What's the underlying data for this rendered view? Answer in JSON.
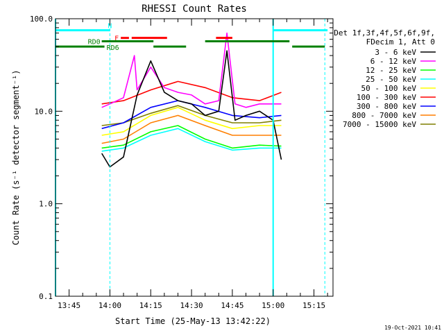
{
  "chart_data": {
    "type": "line",
    "title": "RHESSI Count Rates",
    "xlabel": "Start Time (25-May-13 13:42:22)",
    "ylabel": "Count Rate (s⁻¹ detector segment⁻¹)",
    "y_scale": "log",
    "ylim": [
      0.1,
      100
    ],
    "xlim": [
      "13:40",
      "15:22"
    ],
    "x_ticks": [
      "13:45",
      "14:00",
      "14:15",
      "14:30",
      "14:45",
      "15:00",
      "15:15"
    ],
    "y_ticks": [
      "0.1",
      "1.0",
      "10.0",
      "100.0"
    ],
    "legend_header": [
      "Det 1f,3f,4f,5f,6f,9f,",
      "FDecim 1, Att 0"
    ],
    "legend_position": "right",
    "series": [
      {
        "name": "3 - 6 keV",
        "color": "#000000",
        "x": [
          "13:57",
          "14:00",
          "14:05",
          "14:10",
          "14:15",
          "14:20",
          "14:25",
          "14:30",
          "14:35",
          "14:40",
          "14:43",
          "14:46",
          "14:50",
          "14:55",
          "15:00",
          "15:03"
        ],
        "y": [
          3.5,
          2.5,
          3.2,
          15,
          35,
          16,
          13,
          12,
          9,
          10,
          45,
          8,
          9,
          10,
          8,
          3
        ]
      },
      {
        "name": "6 - 12 keV",
        "color": "#ff00ff",
        "x": [
          "13:57",
          "14:00",
          "14:05",
          "14:09",
          "14:10",
          "14:15",
          "14:20",
          "14:25",
          "14:30",
          "14:35",
          "14:40",
          "14:43",
          "14:46",
          "14:50",
          "14:55",
          "15:00",
          "15:03"
        ],
        "y": [
          11,
          12,
          14,
          40,
          17,
          30,
          18,
          16,
          15,
          12,
          13,
          70,
          12,
          11,
          12,
          12,
          12
        ]
      },
      {
        "name": "12 - 25 keV",
        "color": "#00ff00",
        "x": [
          "13:57",
          "14:05",
          "14:15",
          "14:25",
          "14:35",
          "14:45",
          "14:55",
          "15:03"
        ],
        "y": [
          4.0,
          4.3,
          6.0,
          7.0,
          5.0,
          4.0,
          4.3,
          4.2
        ]
      },
      {
        "name": "25 - 50 keV",
        "color": "#00ffff",
        "x": [
          "13:57",
          "14:05",
          "14:15",
          "14:25",
          "14:35",
          "14:45",
          "14:55",
          "15:03"
        ],
        "y": [
          3.7,
          4.0,
          5.5,
          6.5,
          4.7,
          3.8,
          4.0,
          4.0
        ]
      },
      {
        "name": "50 - 100 keV",
        "color": "#ffff00",
        "x": [
          "13:57",
          "14:05",
          "14:15",
          "14:25",
          "14:35",
          "14:45",
          "14:55",
          "15:03"
        ],
        "y": [
          5.5,
          6.0,
          9.0,
          11,
          8.0,
          6.5,
          7.0,
          7.0
        ]
      },
      {
        "name": "100 - 300 keV",
        "color": "#ff0000",
        "x": [
          "13:57",
          "14:05",
          "14:15",
          "14:25",
          "14:35",
          "14:45",
          "14:55",
          "15:03"
        ],
        "y": [
          12,
          13,
          17,
          21,
          18,
          14,
          13,
          16
        ]
      },
      {
        "name": "300 - 800 keV",
        "color": "#0000ff",
        "x": [
          "13:57",
          "14:05",
          "14:15",
          "14:25",
          "14:35",
          "14:45",
          "14:55",
          "15:03"
        ],
        "y": [
          6.5,
          7.5,
          11,
          13,
          11,
          9,
          8.5,
          9
        ]
      },
      {
        "name": "800 - 7000 keV",
        "color": "#ff7f00",
        "x": [
          "13:57",
          "14:05",
          "14:15",
          "14:25",
          "14:35",
          "14:45",
          "14:55",
          "15:03"
        ],
        "y": [
          4.5,
          5.0,
          7.5,
          9.0,
          7.0,
          5.5,
          5.5,
          5.5
        ]
      },
      {
        "name": "7000 - 15000 keV",
        "color": "#7f7f00",
        "x": [
          "13:57",
          "14:05",
          "14:15",
          "14:25",
          "14:35",
          "14:45",
          "14:55",
          "15:03"
        ],
        "y": [
          7.0,
          7.5,
          9.5,
          11.5,
          9.0,
          7.5,
          7.5,
          8.0
        ]
      }
    ],
    "annotations": {
      "flags": [
        {
          "label": "N",
          "color": "#00ffff",
          "y": 75,
          "segments": [
            [
              "13:40",
              "14:00"
            ],
            [
              "15:00",
              "15:20"
            ]
          ]
        },
        {
          "label": "F",
          "color": "#ff0000",
          "y": 62,
          "segments": [
            [
              "14:04",
              "14:07"
            ],
            [
              "14:08",
              "14:21"
            ],
            [
              "14:39",
              "14:45"
            ]
          ]
        },
        {
          "label": "RD0",
          "color": "#008000",
          "y": 57,
          "segments": [
            [
              "13:57",
              "14:16"
            ],
            [
              "14:35",
              "15:06"
            ]
          ]
        },
        {
          "label": "RD6",
          "color": "#008000",
          "y": 50,
          "segments": [
            [
              "13:40",
              "13:58"
            ],
            [
              "14:16",
              "14:28"
            ],
            [
              "15:07",
              "15:19"
            ]
          ]
        }
      ],
      "vlines": [
        {
          "x": "13:40",
          "style": "solid",
          "color": "#00ffff"
        },
        {
          "x": "15:00",
          "style": "solid",
          "color": "#00ffff"
        },
        {
          "x": "14:00",
          "style": "dashed",
          "color": "#00ffff"
        },
        {
          "x": "15:19",
          "style": "dashed",
          "color": "#00ffff"
        }
      ]
    },
    "timestamp": "19-Oct-2021 10:41"
  }
}
